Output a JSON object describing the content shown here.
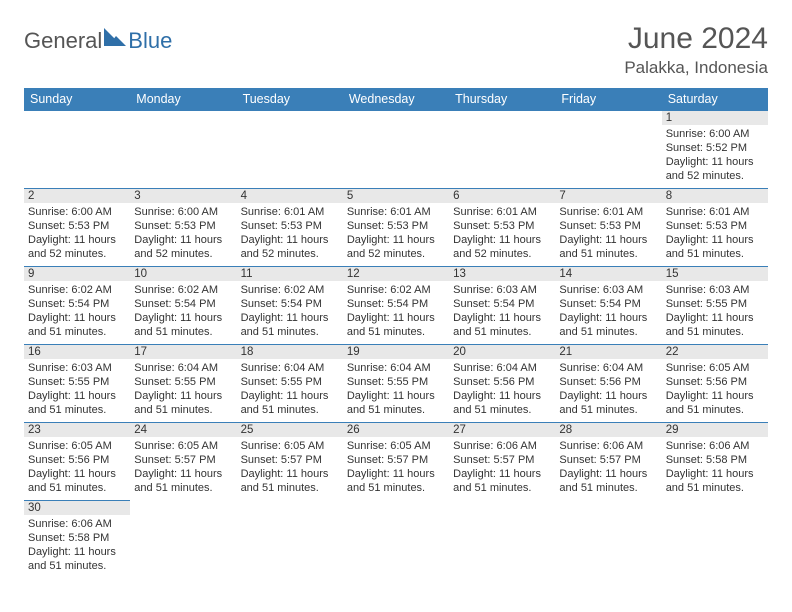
{
  "brand": {
    "main": "General",
    "accent": "Blue"
  },
  "title": "June 2024",
  "location": "Palakka, Indonesia",
  "colors": {
    "header_bg": "#3a7fb8",
    "header_fg": "#ffffff",
    "daynum_bg": "#e8e8e8",
    "text": "#333333",
    "rule": "#3a7fb8",
    "logo_accent": "#2f6fa8"
  },
  "weekdays": [
    "Sunday",
    "Monday",
    "Tuesday",
    "Wednesday",
    "Thursday",
    "Friday",
    "Saturday"
  ],
  "weeks": [
    [
      null,
      null,
      null,
      null,
      null,
      null,
      {
        "n": "1",
        "sunrise": "Sunrise: 6:00 AM",
        "sunset": "Sunset: 5:52 PM",
        "day1": "Daylight: 11 hours",
        "day2": "and 52 minutes."
      }
    ],
    [
      {
        "n": "2",
        "sunrise": "Sunrise: 6:00 AM",
        "sunset": "Sunset: 5:53 PM",
        "day1": "Daylight: 11 hours",
        "day2": "and 52 minutes."
      },
      {
        "n": "3",
        "sunrise": "Sunrise: 6:00 AM",
        "sunset": "Sunset: 5:53 PM",
        "day1": "Daylight: 11 hours",
        "day2": "and 52 minutes."
      },
      {
        "n": "4",
        "sunrise": "Sunrise: 6:01 AM",
        "sunset": "Sunset: 5:53 PM",
        "day1": "Daylight: 11 hours",
        "day2": "and 52 minutes."
      },
      {
        "n": "5",
        "sunrise": "Sunrise: 6:01 AM",
        "sunset": "Sunset: 5:53 PM",
        "day1": "Daylight: 11 hours",
        "day2": "and 52 minutes."
      },
      {
        "n": "6",
        "sunrise": "Sunrise: 6:01 AM",
        "sunset": "Sunset: 5:53 PM",
        "day1": "Daylight: 11 hours",
        "day2": "and 52 minutes."
      },
      {
        "n": "7",
        "sunrise": "Sunrise: 6:01 AM",
        "sunset": "Sunset: 5:53 PM",
        "day1": "Daylight: 11 hours",
        "day2": "and 51 minutes."
      },
      {
        "n": "8",
        "sunrise": "Sunrise: 6:01 AM",
        "sunset": "Sunset: 5:53 PM",
        "day1": "Daylight: 11 hours",
        "day2": "and 51 minutes."
      }
    ],
    [
      {
        "n": "9",
        "sunrise": "Sunrise: 6:02 AM",
        "sunset": "Sunset: 5:54 PM",
        "day1": "Daylight: 11 hours",
        "day2": "and 51 minutes."
      },
      {
        "n": "10",
        "sunrise": "Sunrise: 6:02 AM",
        "sunset": "Sunset: 5:54 PM",
        "day1": "Daylight: 11 hours",
        "day2": "and 51 minutes."
      },
      {
        "n": "11",
        "sunrise": "Sunrise: 6:02 AM",
        "sunset": "Sunset: 5:54 PM",
        "day1": "Daylight: 11 hours",
        "day2": "and 51 minutes."
      },
      {
        "n": "12",
        "sunrise": "Sunrise: 6:02 AM",
        "sunset": "Sunset: 5:54 PM",
        "day1": "Daylight: 11 hours",
        "day2": "and 51 minutes."
      },
      {
        "n": "13",
        "sunrise": "Sunrise: 6:03 AM",
        "sunset": "Sunset: 5:54 PM",
        "day1": "Daylight: 11 hours",
        "day2": "and 51 minutes."
      },
      {
        "n": "14",
        "sunrise": "Sunrise: 6:03 AM",
        "sunset": "Sunset: 5:54 PM",
        "day1": "Daylight: 11 hours",
        "day2": "and 51 minutes."
      },
      {
        "n": "15",
        "sunrise": "Sunrise: 6:03 AM",
        "sunset": "Sunset: 5:55 PM",
        "day1": "Daylight: 11 hours",
        "day2": "and 51 minutes."
      }
    ],
    [
      {
        "n": "16",
        "sunrise": "Sunrise: 6:03 AM",
        "sunset": "Sunset: 5:55 PM",
        "day1": "Daylight: 11 hours",
        "day2": "and 51 minutes."
      },
      {
        "n": "17",
        "sunrise": "Sunrise: 6:04 AM",
        "sunset": "Sunset: 5:55 PM",
        "day1": "Daylight: 11 hours",
        "day2": "and 51 minutes."
      },
      {
        "n": "18",
        "sunrise": "Sunrise: 6:04 AM",
        "sunset": "Sunset: 5:55 PM",
        "day1": "Daylight: 11 hours",
        "day2": "and 51 minutes."
      },
      {
        "n": "19",
        "sunrise": "Sunrise: 6:04 AM",
        "sunset": "Sunset: 5:55 PM",
        "day1": "Daylight: 11 hours",
        "day2": "and 51 minutes."
      },
      {
        "n": "20",
        "sunrise": "Sunrise: 6:04 AM",
        "sunset": "Sunset: 5:56 PM",
        "day1": "Daylight: 11 hours",
        "day2": "and 51 minutes."
      },
      {
        "n": "21",
        "sunrise": "Sunrise: 6:04 AM",
        "sunset": "Sunset: 5:56 PM",
        "day1": "Daylight: 11 hours",
        "day2": "and 51 minutes."
      },
      {
        "n": "22",
        "sunrise": "Sunrise: 6:05 AM",
        "sunset": "Sunset: 5:56 PM",
        "day1": "Daylight: 11 hours",
        "day2": "and 51 minutes."
      }
    ],
    [
      {
        "n": "23",
        "sunrise": "Sunrise: 6:05 AM",
        "sunset": "Sunset: 5:56 PM",
        "day1": "Daylight: 11 hours",
        "day2": "and 51 minutes."
      },
      {
        "n": "24",
        "sunrise": "Sunrise: 6:05 AM",
        "sunset": "Sunset: 5:57 PM",
        "day1": "Daylight: 11 hours",
        "day2": "and 51 minutes."
      },
      {
        "n": "25",
        "sunrise": "Sunrise: 6:05 AM",
        "sunset": "Sunset: 5:57 PM",
        "day1": "Daylight: 11 hours",
        "day2": "and 51 minutes."
      },
      {
        "n": "26",
        "sunrise": "Sunrise: 6:05 AM",
        "sunset": "Sunset: 5:57 PM",
        "day1": "Daylight: 11 hours",
        "day2": "and 51 minutes."
      },
      {
        "n": "27",
        "sunrise": "Sunrise: 6:06 AM",
        "sunset": "Sunset: 5:57 PM",
        "day1": "Daylight: 11 hours",
        "day2": "and 51 minutes."
      },
      {
        "n": "28",
        "sunrise": "Sunrise: 6:06 AM",
        "sunset": "Sunset: 5:57 PM",
        "day1": "Daylight: 11 hours",
        "day2": "and 51 minutes."
      },
      {
        "n": "29",
        "sunrise": "Sunrise: 6:06 AM",
        "sunset": "Sunset: 5:58 PM",
        "day1": "Daylight: 11 hours",
        "day2": "and 51 minutes."
      }
    ],
    [
      {
        "n": "30",
        "sunrise": "Sunrise: 6:06 AM",
        "sunset": "Sunset: 5:58 PM",
        "day1": "Daylight: 11 hours",
        "day2": "and 51 minutes."
      },
      null,
      null,
      null,
      null,
      null,
      null
    ]
  ]
}
